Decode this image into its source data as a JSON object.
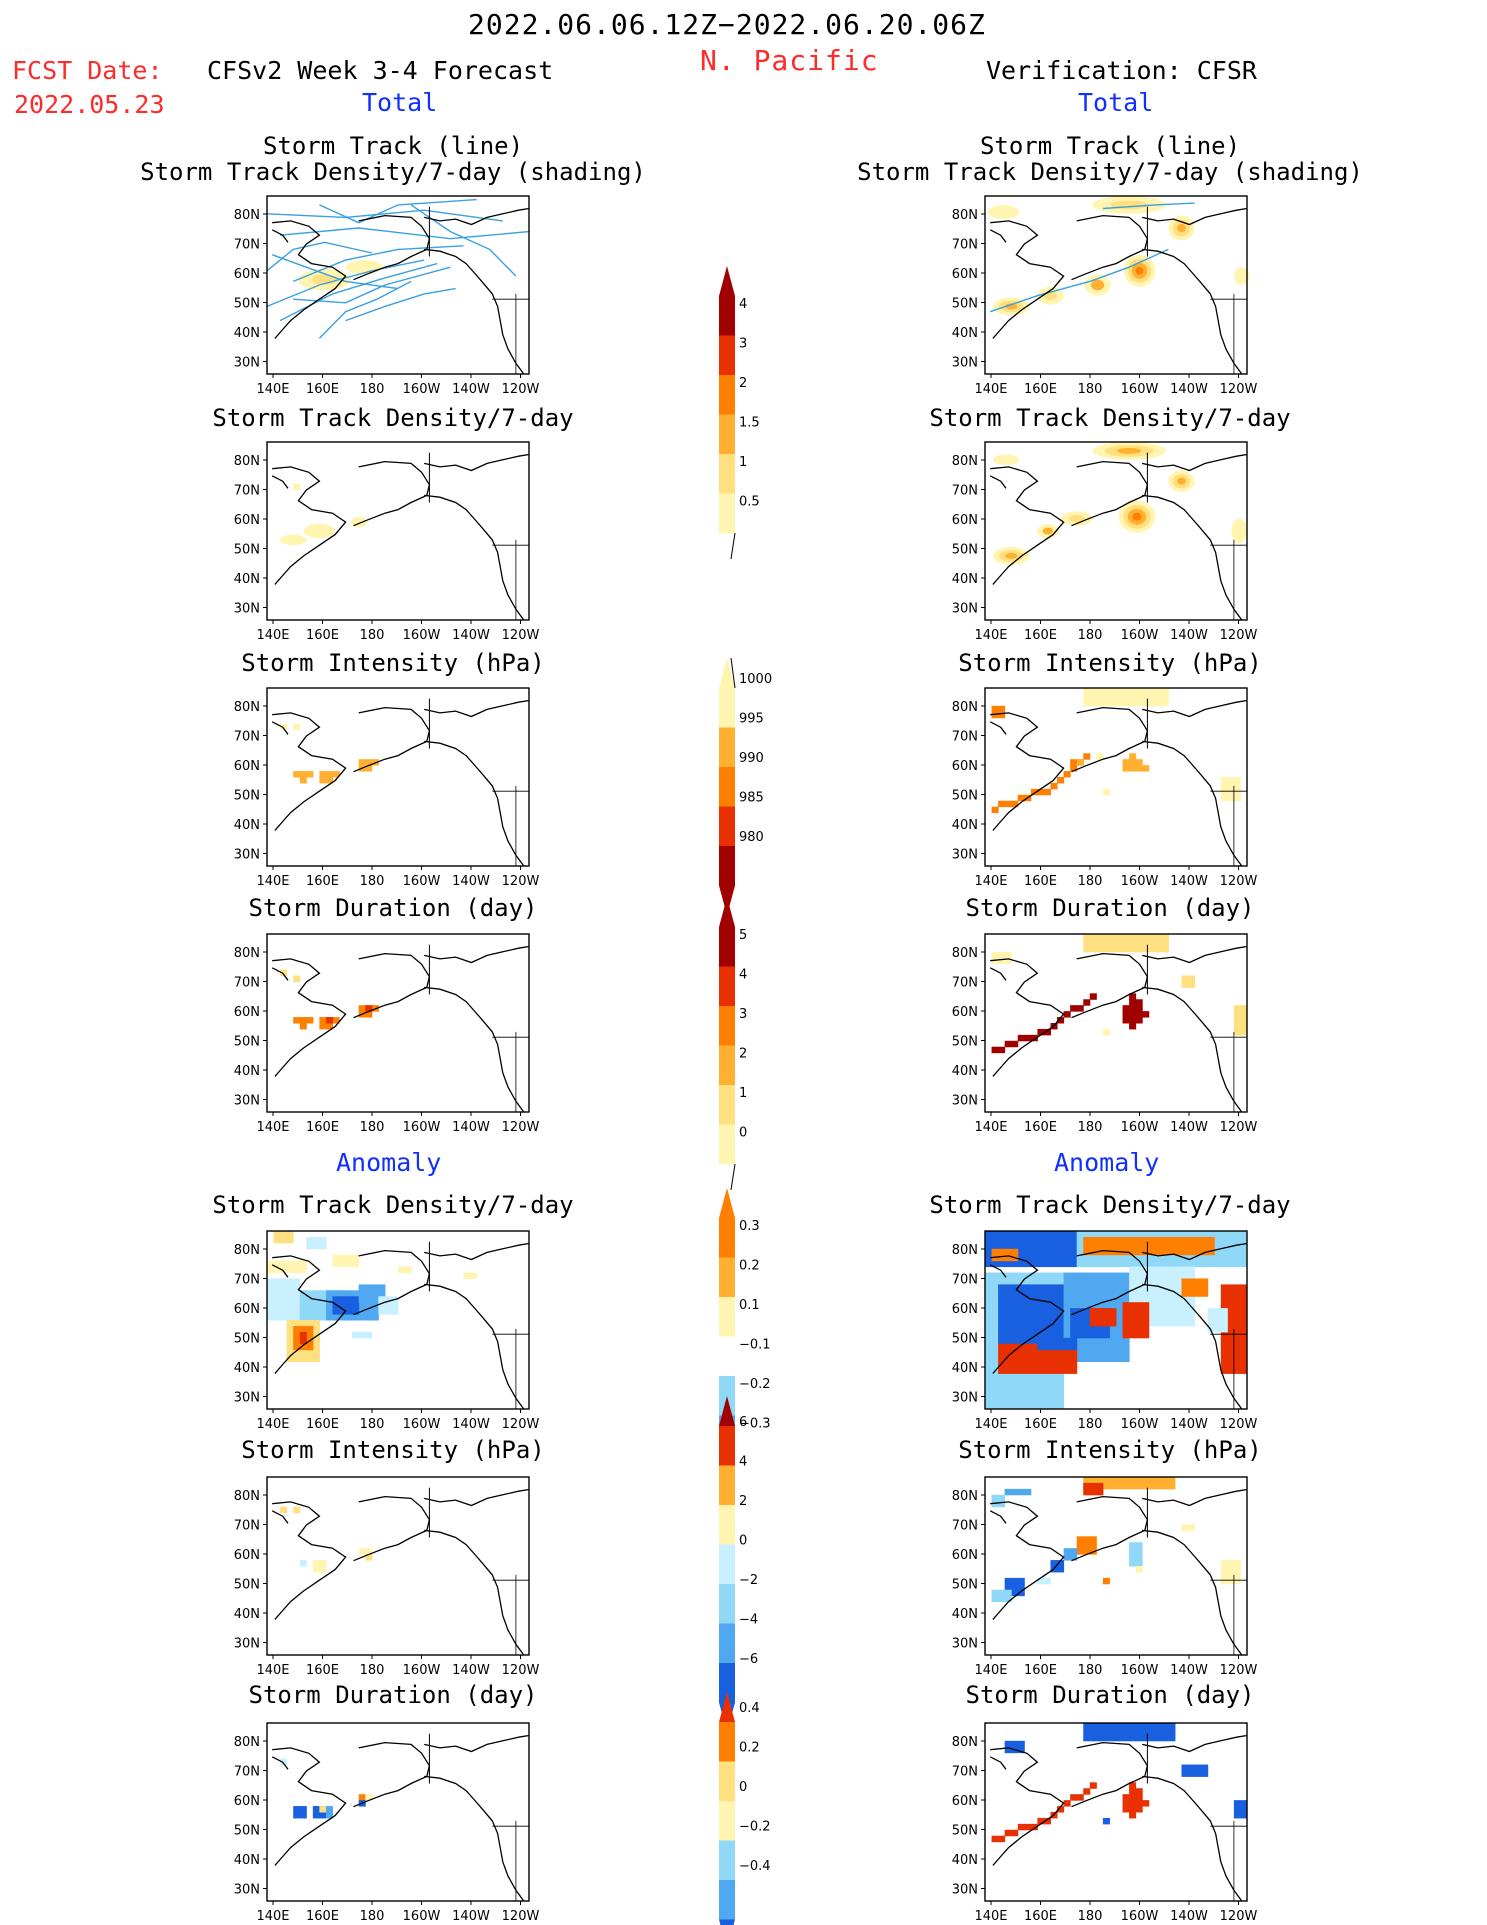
{
  "title": "2022.06.06.12Z−2022.06.20.06Z",
  "region": "N. Pacific",
  "fcst_label": "FCST Date:",
  "fcst_date": "2022.05.23",
  "left_header": "CFSv2 Week 3-4 Forecast",
  "right_header": "Verification: CFSR",
  "section_total": "Total",
  "section_anomaly": "Anomaly",
  "panel_titles": {
    "track_line": "Storm Track (line)",
    "track_shading": "Storm Track Density/7-day (shading)",
    "density": "Storm Track Density/7-day",
    "intensity": "Storm Intensity (hPa)",
    "duration": "Storm Duration (day)"
  },
  "lat_labels": [
    "80N",
    "70N",
    "60N",
    "50N",
    "40N",
    "30N"
  ],
  "lon_labels": [
    "140E",
    "160E",
    "180",
    "160W",
    "140W",
    "120W"
  ],
  "colorbars": {
    "density_total": [
      "4",
      "3",
      "2",
      "1.5",
      "1",
      "0.5"
    ],
    "intensity_total": [
      "1000",
      "995",
      "990",
      "985",
      "980"
    ],
    "duration_total": [
      "5",
      "4",
      "3",
      "2",
      "1",
      "0"
    ],
    "density_anom": [
      "0.3",
      "0.2",
      "0.1",
      "−0.1",
      "−0.2",
      "−0.3"
    ],
    "intensity_anom": [
      "6",
      "4",
      "2",
      "0",
      "−2",
      "−4",
      "−6"
    ],
    "duration_anom": [
      "0.4",
      "0.2",
      "0",
      "−0.2",
      "−0.4"
    ]
  },
  "colors": {
    "title_red": "#ff2a2a",
    "label_blue": "#1030ff",
    "track_line": "#3aa0e0",
    "warm": [
      "#fff5b0",
      "#ffe080",
      "#ffb030",
      "#ff8000",
      "#e83000",
      "#a00000"
    ],
    "cool": [
      "#c8f0ff",
      "#90d8f8",
      "#50a8f0",
      "#1860e0"
    ]
  }
}
